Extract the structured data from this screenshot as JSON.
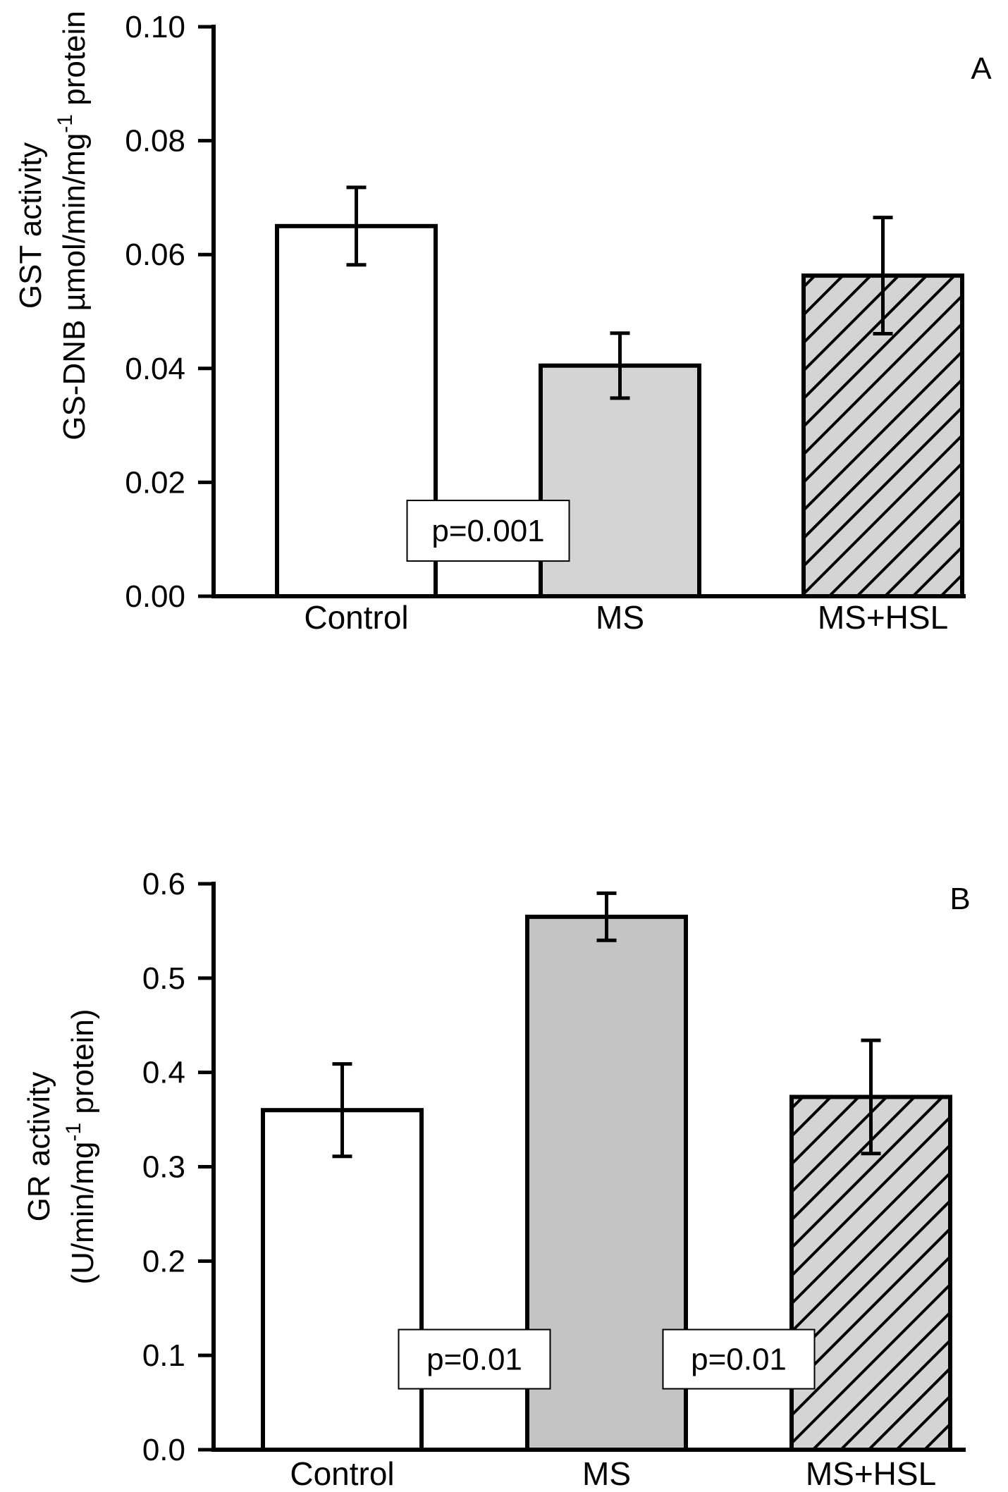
{
  "chart_data": [
    {
      "type": "bar",
      "panel_label": "A",
      "ylabel_line1": "GST activity",
      "ylabel_line2_main": "GS-DNB µmol/min/mg",
      "ylabel_line2_sup": "-1",
      "ylabel_line2_end": " protein",
      "categories": [
        "Control",
        "MS",
        "MS+HSL"
      ],
      "values": [
        0.065,
        0.0405,
        0.0563
      ],
      "errors": [
        0.0068,
        0.0057,
        0.0102
      ],
      "ylim": [
        0,
        0.1
      ],
      "yticks": [
        0.0,
        0.02,
        0.04,
        0.06,
        0.08,
        0.1
      ],
      "ytick_labels": [
        "0.00",
        "0.02",
        "0.04",
        "0.06",
        "0.08",
        "0.10"
      ],
      "fills": [
        "white",
        "lightgray",
        "hatched"
      ],
      "annotations": [
        {
          "text": "p=0.001",
          "between": [
            0,
            1
          ],
          "y": 0.0115
        }
      ]
    },
    {
      "type": "bar",
      "panel_label": "B",
      "ylabel_line1": "GR activity",
      "ylabel_line2_main": "(U/min/mg",
      "ylabel_line2_sup": "-1",
      "ylabel_line2_end": " protein)",
      "categories": [
        "Control",
        "MS",
        "MS+HSL"
      ],
      "values": [
        0.36,
        0.565,
        0.374
      ],
      "errors": [
        0.049,
        0.025,
        0.06
      ],
      "ylim": [
        0,
        0.6
      ],
      "yticks": [
        0.0,
        0.1,
        0.2,
        0.3,
        0.4,
        0.5,
        0.6
      ],
      "ytick_labels": [
        "0.0",
        "0.1",
        "0.2",
        "0.3",
        "0.4",
        "0.5",
        "0.6"
      ],
      "fills": [
        "white",
        "darkgray",
        "hatched"
      ],
      "annotations": [
        {
          "text": "p=0.01",
          "between": [
            0,
            1
          ],
          "y": 0.096
        },
        {
          "text": "p=0.01",
          "between": [
            1,
            2
          ],
          "y": 0.096
        }
      ]
    }
  ],
  "colors": {
    "axis": "#000000",
    "bar_white": "#ffffff",
    "bar_light": "#d4d4d4",
    "bar_dark": "#c4c4c4",
    "hatch_bg": "#d4d4d4",
    "hatch_line": "#000000"
  }
}
